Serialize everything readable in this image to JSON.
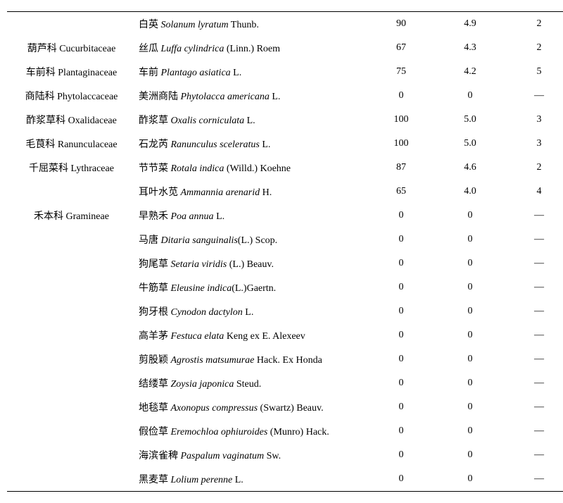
{
  "rows": [
    {
      "family_cn": "",
      "family_latin": "",
      "sp_cn": "白英",
      "sp_latin": "Solanum lyratum",
      "sp_auth": " Thunb.",
      "v1": "90",
      "v2": "4.9",
      "v3": "2"
    },
    {
      "family_cn": "葫芦科",
      "family_latin": "Cucurbitaceae",
      "sp_cn": "丝瓜",
      "sp_latin": "Luffa cylindrica",
      "sp_auth": " (Linn.) Roem",
      "v1": "67",
      "v2": "4.3",
      "v3": "2"
    },
    {
      "family_cn": "车前科",
      "family_latin": "Plantaginaceae",
      "sp_cn": "车前",
      "sp_latin": "Plantago asiatica",
      "sp_auth": " L.",
      "v1": "75",
      "v2": "4.2",
      "v3": "5"
    },
    {
      "family_cn": "商陆科",
      "family_latin": "Phytolaccaceae",
      "sp_cn": "美洲商陆",
      "sp_latin": "Phytolacca americana",
      "sp_auth": " L.",
      "v1": "0",
      "v2": "0",
      "v3": "—"
    },
    {
      "family_cn": "酢浆草科",
      "family_latin": "Oxalidaceae",
      "sp_cn": "酢浆草",
      "sp_latin": "Oxalis corniculata",
      "sp_auth": " L.",
      "v1": "100",
      "v2": "5.0",
      "v3": "3"
    },
    {
      "family_cn": "毛茛科",
      "family_latin": "Ranunculaceae",
      "sp_cn": "石龙芮",
      "sp_latin": "Ranunculus sceleratus",
      "sp_auth": " L.",
      "v1": "100",
      "v2": "5.0",
      "v3": "3"
    },
    {
      "family_cn": "千屈菜科",
      "family_latin": "Lythraceae",
      "sp_cn": "节节菜",
      "sp_latin": "Rotala indica",
      "sp_auth": " (Willd.) Koehne",
      "v1": "87",
      "v2": "4.6",
      "v3": "2"
    },
    {
      "family_cn": "",
      "family_latin": "",
      "sp_cn": "耳叶水苋",
      "sp_latin": "Ammannia arenarid",
      "sp_auth": " H.",
      "v1": "65",
      "v2": "4.0",
      "v3": "4"
    },
    {
      "family_cn": "禾本科",
      "family_latin": "Gramineae",
      "sp_cn": "早熟禾",
      "sp_latin": "Poa annua",
      "sp_auth": " L.",
      "v1": "0",
      "v2": "0",
      "v3": "—"
    },
    {
      "family_cn": "",
      "family_latin": "",
      "sp_cn": "马唐",
      "sp_latin": "Ditaria sanguinalis",
      "sp_auth": "(L.) Scop.",
      "v1": "0",
      "v2": "0",
      "v3": "—"
    },
    {
      "family_cn": "",
      "family_latin": "",
      "sp_cn": "狗尾草",
      "sp_latin": "Setaria viridis",
      "sp_auth": " (L.) Beauv.",
      "v1": "0",
      "v2": "0",
      "v3": "—"
    },
    {
      "family_cn": "",
      "family_latin": "",
      "sp_cn": "牛筋草",
      "sp_latin": "Eleusine indica",
      "sp_auth": "(L.)Gaertn.",
      "v1": "0",
      "v2": "0",
      "v3": "—"
    },
    {
      "family_cn": "",
      "family_latin": "",
      "sp_cn": "狗牙根",
      "sp_latin": "Cynodon dactylon",
      "sp_auth": " L.",
      "v1": "0",
      "v2": "0",
      "v3": "—"
    },
    {
      "family_cn": "",
      "family_latin": "",
      "sp_cn": "高羊茅",
      "sp_latin": "Festuca elata",
      "sp_auth": " Keng ex E. Alexeev",
      "v1": "0",
      "v2": "0",
      "v3": "—"
    },
    {
      "family_cn": "",
      "family_latin": "",
      "sp_cn": "剪股颖",
      "sp_latin": "Agrostis matsumurae",
      "sp_auth": " Hack. Ex Honda",
      "v1": "0",
      "v2": "0",
      "v3": "—"
    },
    {
      "family_cn": "",
      "family_latin": "",
      "sp_cn": "结缕草",
      "sp_latin": "Zoysia japonica",
      "sp_auth": " Steud.",
      "v1": "0",
      "v2": "0",
      "v3": "—"
    },
    {
      "family_cn": "",
      "family_latin": "",
      "sp_cn": "地毯草",
      "sp_latin": "Axonopus compressus",
      "sp_auth": " (Swartz) Beauv.",
      "v1": "0",
      "v2": "0",
      "v3": "—"
    },
    {
      "family_cn": "",
      "family_latin": "",
      "sp_cn": "假俭草",
      "sp_latin": "Eremochloa ophiuroides",
      "sp_auth": " (Munro) Hack.",
      "v1": "0",
      "v2": "0",
      "v3": "—"
    },
    {
      "family_cn": "",
      "family_latin": "",
      "sp_cn": "海滨雀稗",
      "sp_latin": "Paspalum vaginatum",
      "sp_auth": " Sw.",
      "v1": "0",
      "v2": "0",
      "v3": "—"
    },
    {
      "family_cn": "",
      "family_latin": "",
      "sp_cn": "黑麦草",
      "sp_latin": "Lolium perenne",
      "sp_auth": " L.",
      "v1": "0",
      "v2": "0",
      "v3": "—"
    }
  ]
}
